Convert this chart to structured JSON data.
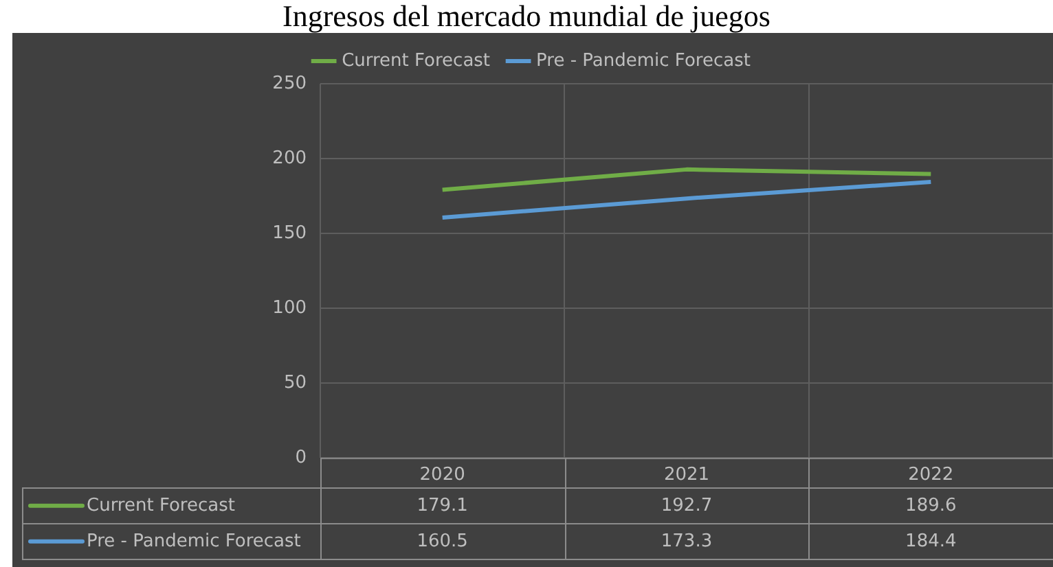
{
  "chart_data": {
    "type": "line",
    "title": "Ingresos del mercado mundial de juegos",
    "categories": [
      "2020",
      "2021",
      "2022"
    ],
    "series": [
      {
        "name": "Current Forecast",
        "color": "#70ad47",
        "values": [
          179.1,
          192.7,
          189.6
        ]
      },
      {
        "name": "Pre - Pandemic Forecast",
        "color": "#5b9bd5",
        "values": [
          160.5,
          173.3,
          184.4
        ]
      }
    ],
    "ylim": [
      0,
      250
    ],
    "yticks": [
      0,
      50,
      100,
      150,
      200,
      250
    ],
    "grid": true,
    "legend": "top",
    "data_labels": true,
    "marker": "none"
  }
}
